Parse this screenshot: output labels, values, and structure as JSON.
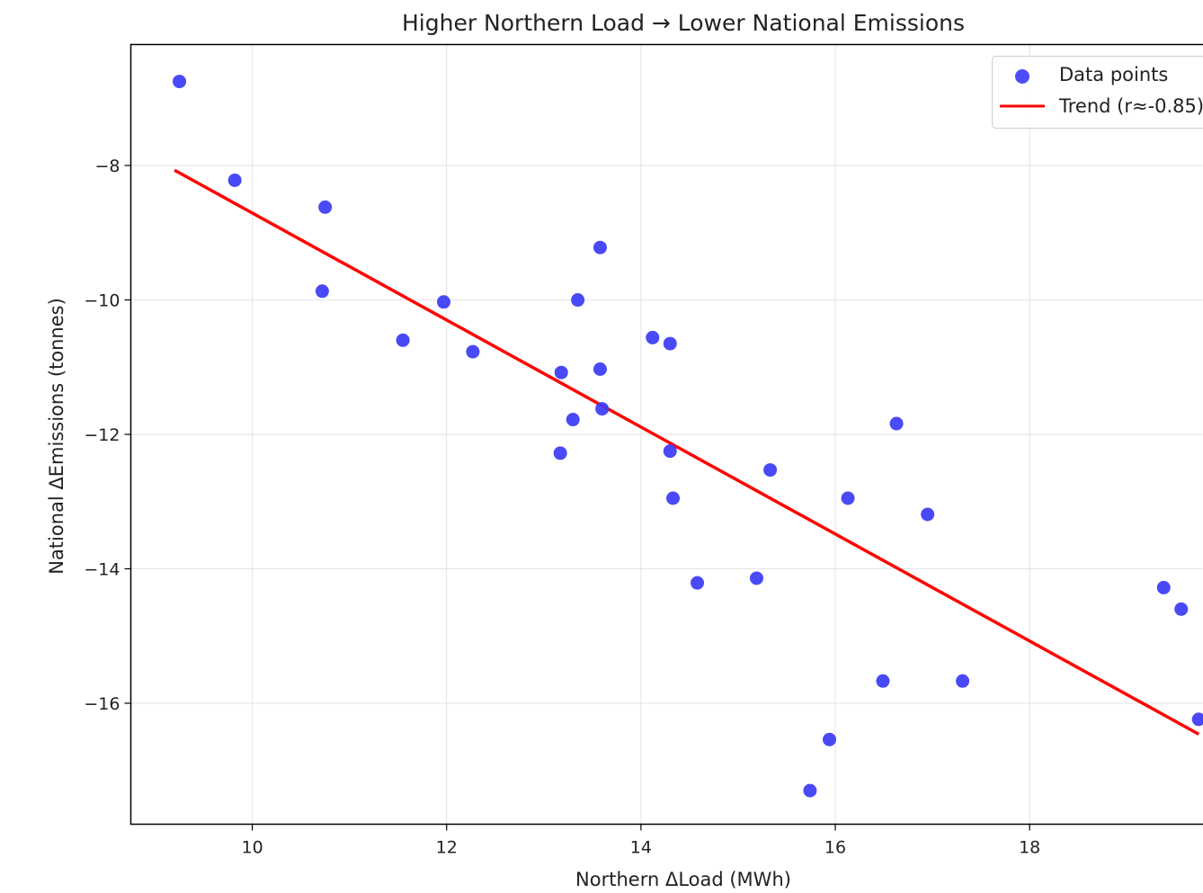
{
  "chart_data": {
    "type": "scatter",
    "title": "Higher Northern Load → Lower National Emissions",
    "xlabel": "Northern ΔLoad (MWh)",
    "ylabel": "National ΔEmissions (tonnes)",
    "xlim": [
      8.75,
      19.9
    ],
    "ylim": [
      -17.8,
      -6.2
    ],
    "xticks": [
      10,
      12,
      14,
      16,
      18
    ],
    "xtick_labels": [
      "10",
      "12",
      "14",
      "16",
      "18"
    ],
    "yticks": [
      -8,
      -10,
      -12,
      -14,
      -16
    ],
    "ytick_labels": [
      "−8",
      "−10",
      "−12",
      "−14",
      "−16"
    ],
    "grid": true,
    "legend_position": "top-right",
    "series": [
      {
        "name": "Data points",
        "kind": "scatter",
        "color": "#3a3af5",
        "points": [
          {
            "x": 9.25,
            "y": -6.75
          },
          {
            "x": 9.82,
            "y": -8.22
          },
          {
            "x": 10.75,
            "y": -8.62
          },
          {
            "x": 10.72,
            "y": -9.87
          },
          {
            "x": 11.55,
            "y": -10.6
          },
          {
            "x": 11.97,
            "y": -10.03
          },
          {
            "x": 12.27,
            "y": -10.77
          },
          {
            "x": 13.18,
            "y": -11.08
          },
          {
            "x": 13.17,
            "y": -12.28
          },
          {
            "x": 13.3,
            "y": -11.78
          },
          {
            "x": 13.35,
            "y": -10.0
          },
          {
            "x": 13.58,
            "y": -9.22
          },
          {
            "x": 13.58,
            "y": -11.03
          },
          {
            "x": 13.6,
            "y": -11.62
          },
          {
            "x": 14.12,
            "y": -10.56
          },
          {
            "x": 14.3,
            "y": -10.65
          },
          {
            "x": 14.3,
            "y": -12.25
          },
          {
            "x": 14.33,
            "y": -12.95
          },
          {
            "x": 14.58,
            "y": -14.21
          },
          {
            "x": 15.19,
            "y": -14.14
          },
          {
            "x": 15.33,
            "y": -12.53
          },
          {
            "x": 15.74,
            "y": -17.3
          },
          {
            "x": 15.94,
            "y": -16.54
          },
          {
            "x": 16.13,
            "y": -12.95
          },
          {
            "x": 16.49,
            "y": -15.67
          },
          {
            "x": 16.63,
            "y": -11.84
          },
          {
            "x": 16.95,
            "y": -13.19
          },
          {
            "x": 17.31,
            "y": -15.67
          },
          {
            "x": 19.38,
            "y": -14.28
          },
          {
            "x": 19.56,
            "y": -14.6
          },
          {
            "x": 19.74,
            "y": -16.24
          }
        ]
      },
      {
        "name": "Trend (r≈-0.85)",
        "kind": "line",
        "color": "#ff0000",
        "points": [
          {
            "x": 9.2,
            "y": -8.07
          },
          {
            "x": 19.74,
            "y": -16.46
          }
        ]
      }
    ]
  }
}
